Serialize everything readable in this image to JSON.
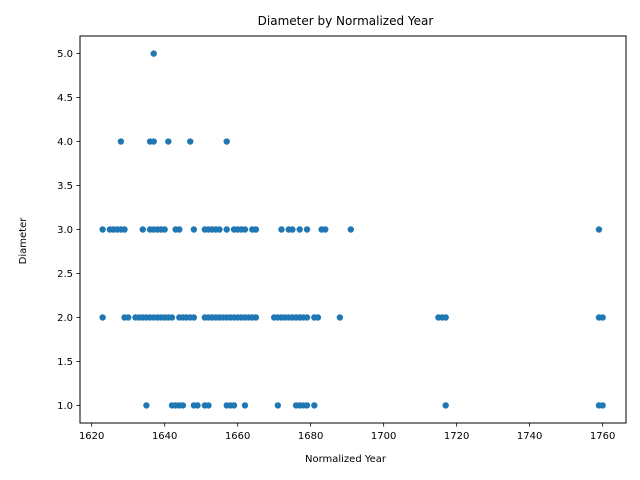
{
  "chart_data": {
    "type": "scatter",
    "title": "Diameter by Normalized Year",
    "xlabel": "Normalized Year",
    "ylabel": "Diameter",
    "xlim": [
      1616.8,
      1766.4
    ],
    "ylim": [
      0.8,
      5.2
    ],
    "xticks": [
      1620,
      1640,
      1660,
      1680,
      1700,
      1720,
      1740,
      1760
    ],
    "yticks": [
      1.0,
      1.5,
      2.0,
      2.5,
      3.0,
      3.5,
      4.0,
      4.5,
      5.0
    ],
    "xtick_labels": [
      "1620",
      "1640",
      "1660",
      "1680",
      "1700",
      "1720",
      "1740",
      "1760"
    ],
    "ytick_labels": [
      "1.0",
      "1.5",
      "2.0",
      "2.5",
      "3.0",
      "3.5",
      "4.0",
      "4.5",
      "5.0"
    ],
    "grid": false,
    "legend": "none",
    "marker_color": "#1f77b4",
    "series": [
      {
        "points": [
          [
            1637,
            5
          ],
          [
            1628,
            4
          ],
          [
            1636,
            4
          ],
          [
            1637,
            4
          ],
          [
            1641,
            4
          ],
          [
            1647,
            4
          ],
          [
            1657,
            4
          ],
          [
            1623,
            3
          ],
          [
            1625,
            3
          ],
          [
            1626,
            3
          ],
          [
            1627,
            3
          ],
          [
            1628,
            3
          ],
          [
            1629,
            3
          ],
          [
            1634,
            3
          ],
          [
            1636,
            3
          ],
          [
            1637,
            3
          ],
          [
            1638,
            3
          ],
          [
            1639,
            3
          ],
          [
            1640,
            3
          ],
          [
            1643,
            3
          ],
          [
            1644,
            3
          ],
          [
            1648,
            3
          ],
          [
            1651,
            3
          ],
          [
            1652,
            3
          ],
          [
            1653,
            3
          ],
          [
            1654,
            3
          ],
          [
            1655,
            3
          ],
          [
            1657,
            3
          ],
          [
            1659,
            3
          ],
          [
            1660,
            3
          ],
          [
            1661,
            3
          ],
          [
            1662,
            3
          ],
          [
            1664,
            3
          ],
          [
            1665,
            3
          ],
          [
            1672,
            3
          ],
          [
            1674,
            3
          ],
          [
            1675,
            3
          ],
          [
            1677,
            3
          ],
          [
            1679,
            3
          ],
          [
            1683,
            3
          ],
          [
            1684,
            3
          ],
          [
            1691,
            3
          ],
          [
            1759,
            3
          ],
          [
            1623,
            2
          ],
          [
            1629,
            2
          ],
          [
            1630,
            2
          ],
          [
            1632,
            2
          ],
          [
            1633,
            2
          ],
          [
            1634,
            2
          ],
          [
            1635,
            2
          ],
          [
            1636,
            2
          ],
          [
            1637,
            2
          ],
          [
            1638,
            2
          ],
          [
            1639,
            2
          ],
          [
            1640,
            2
          ],
          [
            1641,
            2
          ],
          [
            1642,
            2
          ],
          [
            1644,
            2
          ],
          [
            1645,
            2
          ],
          [
            1646,
            2
          ],
          [
            1647,
            2
          ],
          [
            1648,
            2
          ],
          [
            1651,
            2
          ],
          [
            1652,
            2
          ],
          [
            1653,
            2
          ],
          [
            1654,
            2
          ],
          [
            1655,
            2
          ],
          [
            1656,
            2
          ],
          [
            1657,
            2
          ],
          [
            1658,
            2
          ],
          [
            1659,
            2
          ],
          [
            1660,
            2
          ],
          [
            1661,
            2
          ],
          [
            1662,
            2
          ],
          [
            1663,
            2
          ],
          [
            1664,
            2
          ],
          [
            1665,
            2
          ],
          [
            1670,
            2
          ],
          [
            1671,
            2
          ],
          [
            1672,
            2
          ],
          [
            1673,
            2
          ],
          [
            1674,
            2
          ],
          [
            1675,
            2
          ],
          [
            1676,
            2
          ],
          [
            1677,
            2
          ],
          [
            1678,
            2
          ],
          [
            1679,
            2
          ],
          [
            1681,
            2
          ],
          [
            1682,
            2
          ],
          [
            1688,
            2
          ],
          [
            1715,
            2
          ],
          [
            1716,
            2
          ],
          [
            1717,
            2
          ],
          [
            1759,
            2
          ],
          [
            1760,
            2
          ],
          [
            1635,
            1
          ],
          [
            1642,
            1
          ],
          [
            1643,
            1
          ],
          [
            1644,
            1
          ],
          [
            1645,
            1
          ],
          [
            1648,
            1
          ],
          [
            1649,
            1
          ],
          [
            1651,
            1
          ],
          [
            1652,
            1
          ],
          [
            1657,
            1
          ],
          [
            1658,
            1
          ],
          [
            1659,
            1
          ],
          [
            1662,
            1
          ],
          [
            1671,
            1
          ],
          [
            1676,
            1
          ],
          [
            1677,
            1
          ],
          [
            1678,
            1
          ],
          [
            1679,
            1
          ],
          [
            1681,
            1
          ],
          [
            1717,
            1
          ],
          [
            1759,
            1
          ],
          [
            1760,
            1
          ]
        ]
      }
    ]
  }
}
